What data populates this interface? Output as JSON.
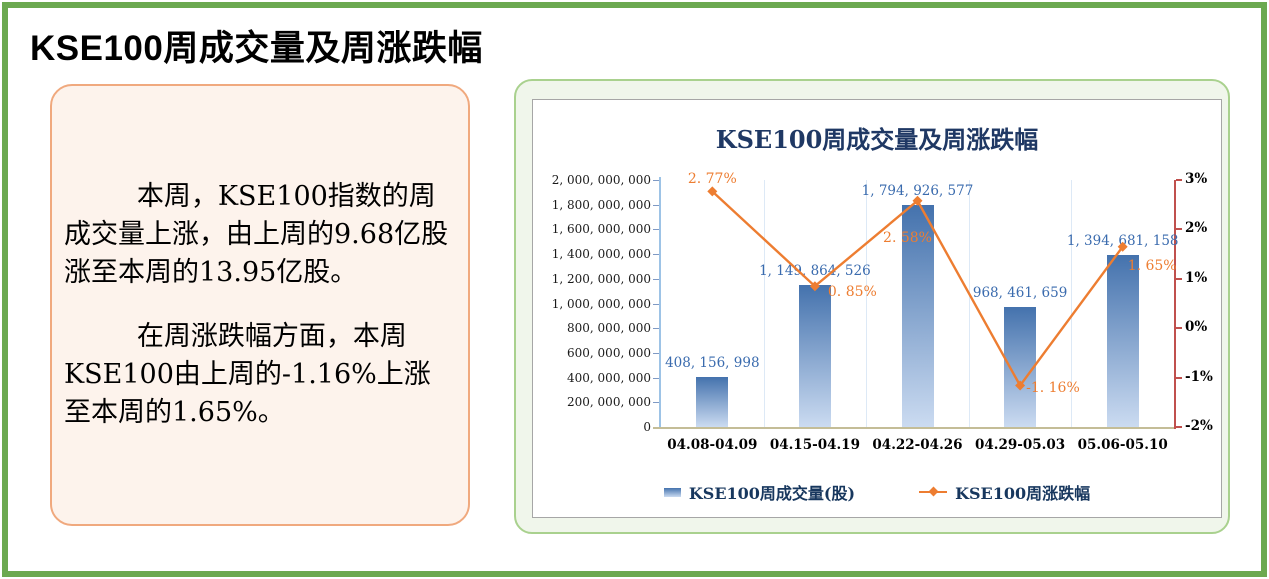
{
  "page": {
    "title": "KSE100周成交量及周涨跌幅"
  },
  "summary": {
    "paragraph1": "本周，KSE100指数的周成交量上涨，由上周的9.68亿股涨至本周的13.95亿股。",
    "paragraph2": "在周涨跌幅方面，本周KSE100由上周的-1.16%上涨至本周的1.65%。"
  },
  "chart": {
    "title": "KSE100周成交量及周涨跌幅",
    "legend": [
      {
        "label": "KSE100周成交量(股)"
      },
      {
        "label": "KSE100周涨跌幅"
      }
    ]
  },
  "chart_data": {
    "type": "bar+line combo",
    "title": "KSE100周成交量及周涨跌幅",
    "categories": [
      "04.08-04.09",
      "04.15-04.19",
      "04.22-04.26",
      "04.29-05.03",
      "05.06-05.10"
    ],
    "series": [
      {
        "name": "KSE100周成交量(股)",
        "type": "bar",
        "axis": "left",
        "values": [
          408156998,
          1149864526,
          1794926577,
          968461659,
          1394681158
        ],
        "labels": [
          "408, 156, 998",
          "1, 149, 864, 526",
          "1, 794, 926, 577",
          "968, 461, 659",
          "1, 394, 681, 158"
        ]
      },
      {
        "name": "KSE100周涨跌幅",
        "type": "line",
        "axis": "right",
        "values": [
          2.77,
          0.85,
          2.58,
          -1.16,
          1.65
        ],
        "labels": [
          "2. 77%",
          "0. 85%",
          "2. 58%",
          "-1. 16%",
          "1. 65%"
        ]
      }
    ],
    "y_left": {
      "min": 0,
      "max": 2000000000,
      "step": 200000000
    },
    "y_right": {
      "min": -2,
      "max": 3,
      "step": 1,
      "format": "percent"
    },
    "grid": "vertical category separators only",
    "legend_position": "bottom"
  },
  "colors": {
    "page_border": "#6CA950",
    "box_border": "#F0A97E",
    "box_bg": "#FDF3EC",
    "card_border": "#A9D18E",
    "card_bg": "#F0F6EB",
    "canvas_border": "#A6A6A6",
    "chart_title": "#1F3864",
    "bar_top": "#4472AD",
    "bar_bottom": "#CBDBF1",
    "bar_label": "#3A6BAE",
    "line": "#ED7D31",
    "left_axis": "#9DC3E6",
    "bottom_axis": "#C4BD97",
    "right_axis": "#C0504D",
    "legend_text": "#17375E"
  }
}
